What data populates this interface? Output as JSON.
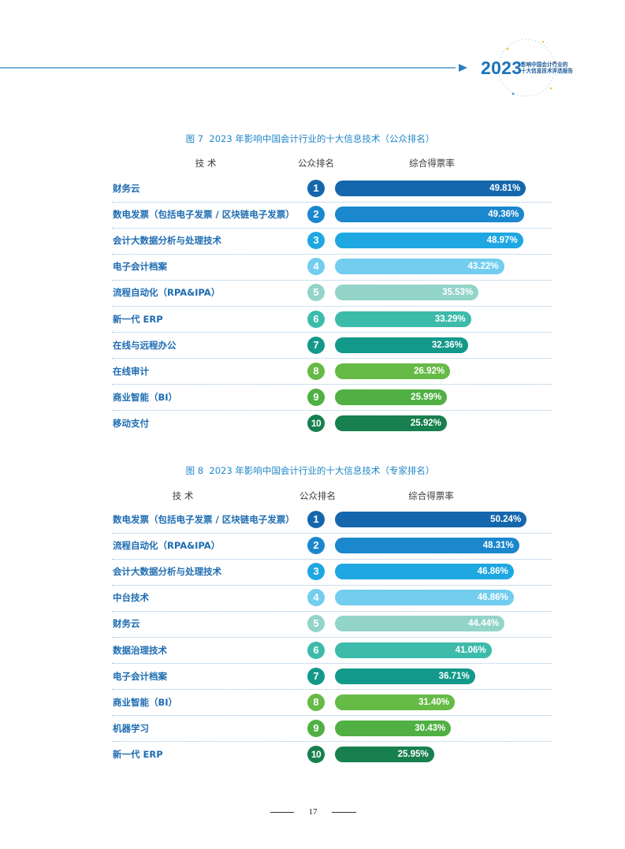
{
  "header": {
    "year": "2023",
    "subtitle_line1": "影响中国会计行业的",
    "subtitle_line2": "十大信息技术评选报告"
  },
  "colors": {
    "rank_colors": [
      "#1567ad",
      "#1b87cd",
      "#1ea7e1",
      "#72cdef",
      "#93d4c9",
      "#3dbbaa",
      "#13998a",
      "#66ba46",
      "#50b043",
      "#17804e"
    ]
  },
  "chart_data": [
    {
      "type": "bar",
      "title": "图 7  2023 年影响中国会计行业的十大信息技术（公众排名）",
      "column_headers": {
        "technology": "技 术",
        "rank": "公众排名",
        "rate": "综合得票率"
      },
      "categories": [
        "财务云",
        "数电发票（包括电子发票 / 区块链电子发票）",
        "会计大数据分析与处理技术",
        "电子会计档案",
        "流程自动化（RPA&IPA）",
        "新一代 ERP",
        "在线与远程办公",
        "在线审计",
        "商业智能（BI）",
        "移动支付"
      ],
      "ranks": [
        1,
        2,
        3,
        4,
        5,
        6,
        7,
        8,
        9,
        10
      ],
      "values": [
        49.81,
        49.36,
        48.97,
        43.22,
        35.53,
        33.29,
        32.36,
        26.92,
        25.99,
        25.92
      ],
      "value_labels": [
        "49.81%",
        "49.36%",
        "48.97%",
        "43.22%",
        "35.53%",
        "33.29%",
        "32.36%",
        "26.92%",
        "25.99%",
        "25.92%"
      ]
    },
    {
      "type": "bar",
      "title": "图 8  2023 年影响中国会计行业的十大信息技术（专家排名）",
      "column_headers": {
        "technology": "技 术",
        "rank": "公众排名",
        "rate": "综合得票率"
      },
      "categories": [
        "数电发票（包括电子发票 / 区块链电子发票）",
        "流程自动化（RPA&IPA）",
        "会计大数据分析与处理技术",
        "中台技术",
        "财务云",
        "数据治理技术",
        "电子会计档案",
        "商业智能（BI）",
        "机器学习",
        "新一代 ERP"
      ],
      "ranks": [
        1,
        2,
        3,
        4,
        5,
        6,
        7,
        8,
        9,
        10
      ],
      "values": [
        50.24,
        48.31,
        46.86,
        46.86,
        44.44,
        41.06,
        36.71,
        31.4,
        30.43,
        25.95
      ],
      "value_labels": [
        "50.24%",
        "48.31%",
        "46.86%",
        "46.86%",
        "44.44%",
        "41.06%",
        "36.71%",
        "31.40%",
        "30.43%",
        "25.95%"
      ]
    }
  ],
  "footer": {
    "page_number": "17"
  }
}
